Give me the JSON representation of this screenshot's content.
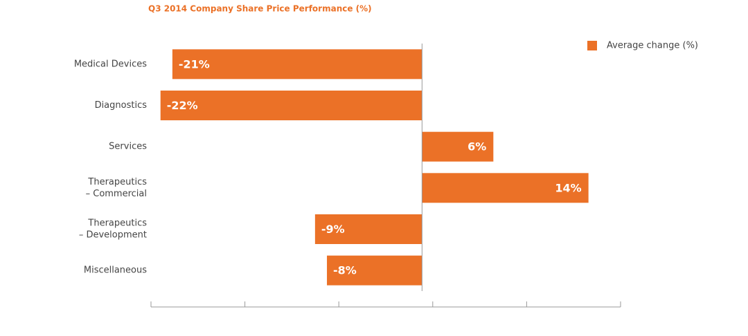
{
  "chart_data": {
    "type": "hbar",
    "title": "Q3 2014 Company Share Price Performance (%)",
    "categories": [
      [
        "Medical Devices"
      ],
      [
        "Diagnostics"
      ],
      [
        "Services"
      ],
      [
        "Therapeutics",
        "– Commercial"
      ],
      [
        "Therapeutics",
        "– Development"
      ],
      [
        "Miscellaneous"
      ]
    ],
    "series": [
      {
        "name": "Average change (%)",
        "color": "#eb7127",
        "values": [
          -21,
          -22,
          6,
          14,
          -9,
          -8
        ],
        "value_labels": [
          "-21%",
          "-22%",
          "6%",
          "14%",
          "-9%",
          "-8%"
        ]
      }
    ],
    "xlim": [
      -22.8,
      16.7
    ],
    "legend": "top-right"
  }
}
